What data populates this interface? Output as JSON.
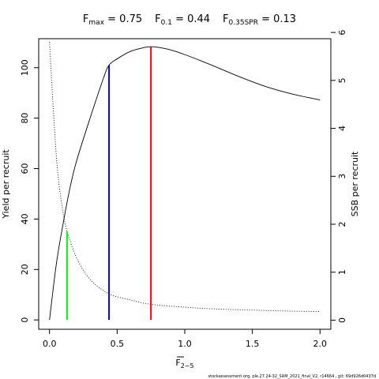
{
  "chart_data": {
    "type": "line",
    "title": {
      "items": [
        {
          "sym": "F",
          "sub": "max",
          "value": "0.75"
        },
        {
          "sym": "F",
          "sub": "0.1",
          "value": "0.44"
        },
        {
          "sym": "F",
          "sub": "0.35SPR",
          "value": "0.13"
        }
      ]
    },
    "xlabel": {
      "main": "F",
      "sub": "2−5"
    },
    "ylabel_left": "Yield per recruit",
    "ylabel_right": "SSB per recruit",
    "xlim": [
      -0.08,
      2.08
    ],
    "ylim_left": [
      -3.7,
      111.5
    ],
    "ylim_right": [
      -0.19,
      5.87
    ],
    "x_ticks": [
      0.0,
      0.5,
      1.0,
      1.5,
      2.0
    ],
    "x_tick_labels": [
      "0.0",
      "0.5",
      "1.0",
      "1.5",
      "2.0"
    ],
    "y_ticks_left": [
      0,
      20,
      40,
      60,
      80,
      100
    ],
    "y_ticks_right": [
      0,
      1,
      2,
      3,
      4,
      5,
      6
    ],
    "grid": false,
    "series": [
      {
        "axis": "left",
        "style": "solid",
        "color": "#000000",
        "x": [
          0.0,
          0.05,
          0.1,
          0.15,
          0.2,
          0.3,
          0.4,
          0.44,
          0.5,
          0.6,
          0.7,
          0.75,
          0.8,
          0.9,
          1.0,
          1.2,
          1.4,
          1.6,
          1.8,
          2.0
        ],
        "y": [
          0,
          22,
          38,
          52,
          63,
          80,
          96,
          101,
          103.5,
          106.5,
          108.0,
          108.3,
          108.1,
          107.0,
          105.2,
          101.0,
          96.5,
          92.5,
          89.5,
          87.2
        ]
      },
      {
        "axis": "right",
        "style": "dotted",
        "color": "#000000",
        "x": [
          0.0,
          0.03,
          0.06,
          0.1,
          0.13,
          0.2,
          0.3,
          0.44,
          0.6,
          0.75,
          1.0,
          1.25,
          1.5,
          1.75,
          2.0
        ],
        "y": [
          5.8,
          4.3,
          3.1,
          2.25,
          1.85,
          1.3,
          0.85,
          0.55,
          0.42,
          0.33,
          0.27,
          0.23,
          0.21,
          0.19,
          0.18
        ]
      }
    ],
    "reference_lines": [
      {
        "x": 0.13,
        "y_top": 35,
        "color": "#00ff00"
      },
      {
        "x": 0.44,
        "y_top": 101,
        "color": "#0000ff"
      },
      {
        "x": 0.75,
        "y_top": 108.3,
        "color": "#ff0000"
      }
    ]
  },
  "footer": "stockassessment.org, ple.27.24-32_SAM_2021_final_V2, r14664 , git: 69d926d0437d"
}
